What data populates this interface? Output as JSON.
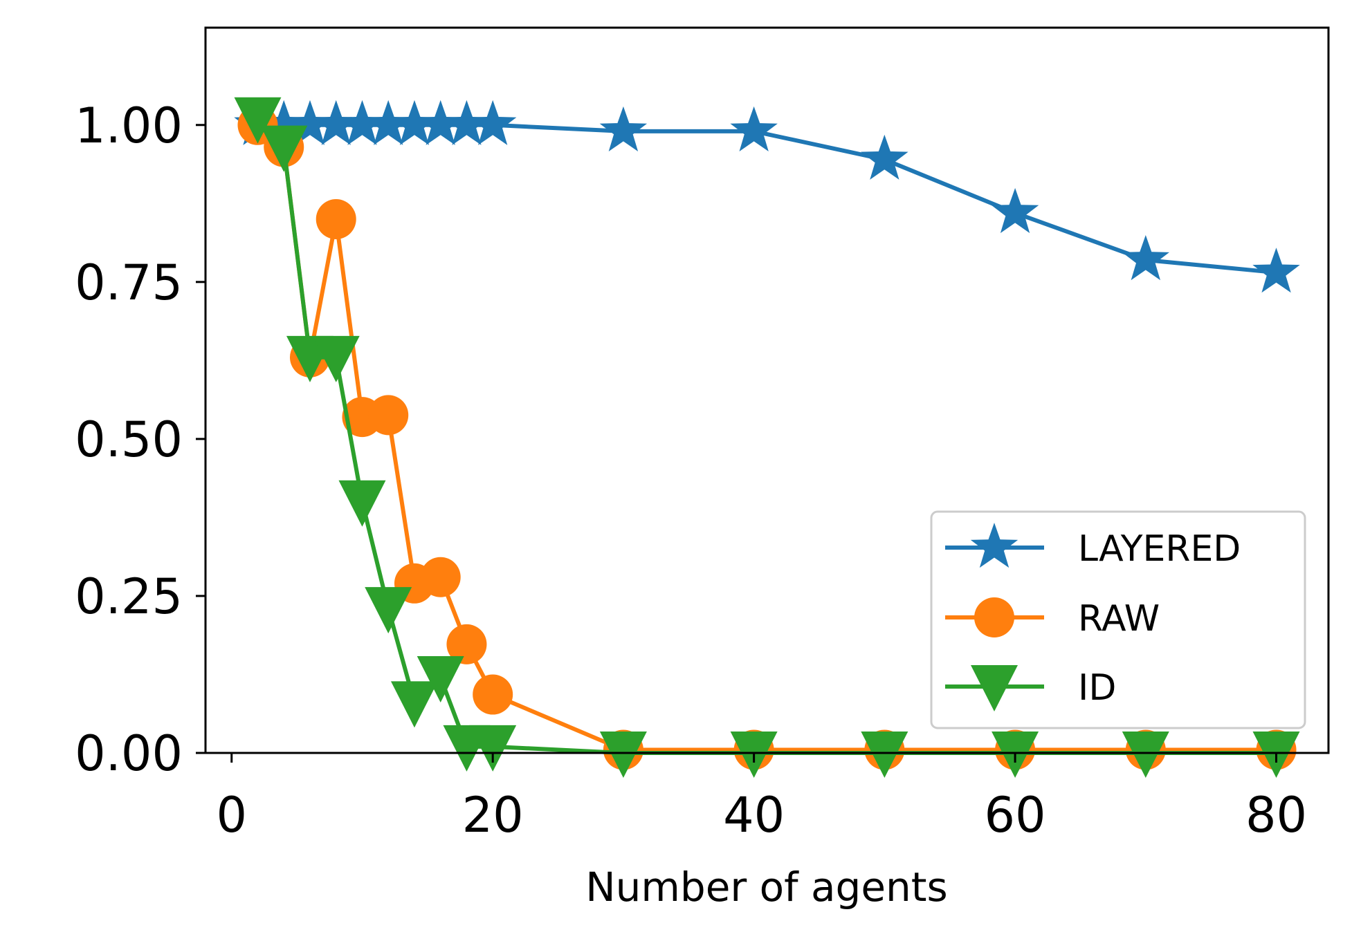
{
  "chart_data": {
    "type": "line",
    "title": "",
    "xlabel": "Number of agents",
    "ylabel": "",
    "xlim": [
      -2,
      84
    ],
    "ylim": [
      0,
      1.155
    ],
    "xticks": [
      0,
      20,
      40,
      60,
      80
    ],
    "xtick_labels": [
      "0",
      "20",
      "40",
      "60",
      "80"
    ],
    "yticks": [
      0,
      0.25,
      0.5,
      0.75,
      1.0
    ],
    "ytick_labels": [
      "0.00",
      "0.25",
      "0.50",
      "0.75",
      "1.00"
    ],
    "grid": false,
    "legend_position": "lower-right",
    "series": [
      {
        "name": "LAYERED",
        "color": "#1f77b4",
        "marker": "star",
        "points": [
          [
            2,
            1.0
          ],
          [
            4,
            1.0
          ],
          [
            6,
            1.0
          ],
          [
            8,
            1.0
          ],
          [
            10,
            1.0
          ],
          [
            12,
            1.0
          ],
          [
            14,
            1.0
          ],
          [
            16,
            1.0
          ],
          [
            18,
            1.0
          ],
          [
            20,
            1.0
          ],
          [
            30,
            0.99
          ],
          [
            40,
            0.99
          ],
          [
            50,
            0.945
          ],
          [
            60,
            0.86
          ],
          [
            70,
            0.785
          ],
          [
            80,
            0.765
          ]
        ]
      },
      {
        "name": "RAW",
        "color": "#ff7f0e",
        "marker": "circle",
        "points": [
          [
            2,
            1.0
          ],
          [
            4,
            0.965
          ],
          [
            6,
            0.63
          ],
          [
            8,
            0.85
          ],
          [
            10,
            0.535
          ],
          [
            12,
            0.538
          ],
          [
            14,
            0.27
          ],
          [
            16,
            0.28
          ],
          [
            18,
            0.173
          ],
          [
            20,
            0.093
          ],
          [
            30,
            0.005
          ],
          [
            40,
            0.005
          ],
          [
            50,
            0.005
          ],
          [
            60,
            0.005
          ],
          [
            70,
            0.005
          ],
          [
            80,
            0.005
          ]
        ]
      },
      {
        "name": "ID",
        "color": "#2ca02c",
        "marker": "triangle-down",
        "points": [
          [
            2,
            1.01
          ],
          [
            4,
            0.965
          ],
          [
            6,
            0.63
          ],
          [
            8,
            0.63
          ],
          [
            10,
            0.4
          ],
          [
            12,
            0.23
          ],
          [
            14,
            0.08
          ],
          [
            16,
            0.12
          ],
          [
            18,
            0.01
          ],
          [
            20,
            0.01
          ],
          [
            30,
            0.0
          ],
          [
            40,
            0.0
          ],
          [
            50,
            0.0
          ],
          [
            60,
            0.0
          ],
          [
            70,
            0.0
          ],
          [
            80,
            0.0
          ]
        ]
      }
    ]
  }
}
